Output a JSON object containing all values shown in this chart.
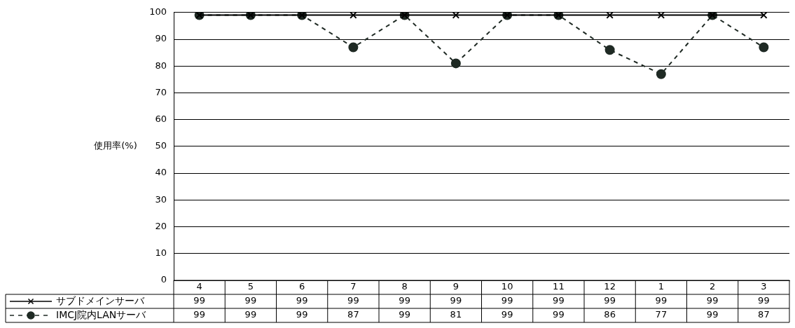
{
  "chart_data": {
    "type": "line",
    "ylabel": "使用率(%)",
    "categories": [
      "4",
      "5",
      "6",
      "7",
      "8",
      "9",
      "10",
      "11",
      "12",
      "1",
      "2",
      "3"
    ],
    "series": [
      {
        "name": "サブドメインサーバ",
        "color": "#000000",
        "marker": "cross",
        "line_style": "solid",
        "values": [
          99,
          99,
          99,
          99,
          99,
          99,
          99,
          99,
          99,
          99,
          99,
          99
        ]
      },
      {
        "name": "IMCJ院内LANサーバ",
        "color": "#1f2a24",
        "marker": "circle",
        "line_style": "dashed",
        "values": [
          99,
          99,
          99,
          87,
          99,
          81,
          99,
          99,
          86,
          77,
          99,
          87
        ]
      }
    ],
    "ylim": [
      0,
      100
    ],
    "yticks": [
      0,
      10,
      20,
      30,
      40,
      50,
      60,
      70,
      80,
      90,
      100
    ],
    "grid": "y",
    "legend": "bottom left",
    "data_labels": true
  }
}
